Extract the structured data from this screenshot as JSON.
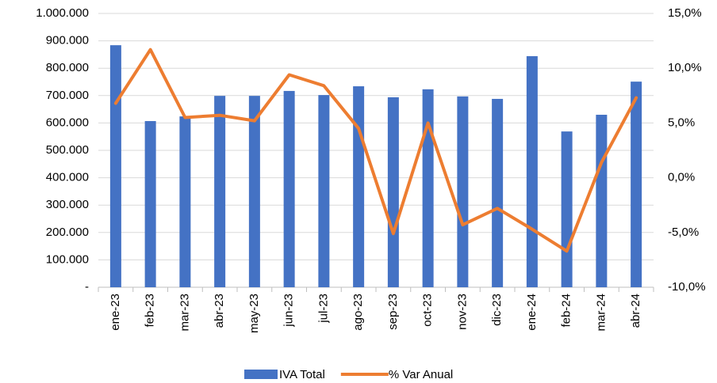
{
  "chart_data": {
    "type": "bar-line",
    "categories": [
      "ene-23",
      "feb-23",
      "mar-23",
      "abr-23",
      "may-23",
      "jun-23",
      "jul-23",
      "ago-23",
      "sep-23",
      "oct-23",
      "nov-23",
      "dic-23",
      "ene-24",
      "feb-24",
      "mar-24",
      "abr-24"
    ],
    "series": [
      {
        "name": "IVA Total",
        "type": "bar",
        "color": "#4472c4",
        "values": [
          884000,
          607000,
          624000,
          699000,
          699000,
          717000,
          702000,
          734000,
          694000,
          723000,
          697000,
          688000,
          844000,
          569000,
          630000,
          751000
        ]
      },
      {
        "name": "% Var Anual",
        "type": "line",
        "axis": "y2",
        "color": "#ed7d31",
        "values": [
          6.8,
          11.7,
          5.5,
          5.7,
          5.2,
          9.4,
          8.4,
          4.5,
          -5.1,
          5.0,
          -4.3,
          -2.8,
          -4.7,
          -6.7,
          1.4,
          7.3
        ]
      }
    ],
    "ylim": [
      0,
      1000000
    ],
    "yticks": [
      {
        "value": 0,
        "label": "-"
      },
      {
        "value": 100000,
        "label": "100.000"
      },
      {
        "value": 200000,
        "label": "200.000"
      },
      {
        "value": 300000,
        "label": "300.000"
      },
      {
        "value": 400000,
        "label": "400.000"
      },
      {
        "value": 500000,
        "label": "500.000"
      },
      {
        "value": 600000,
        "label": "600.000"
      },
      {
        "value": 700000,
        "label": "700.000"
      },
      {
        "value": 800000,
        "label": "800.000"
      },
      {
        "value": 900000,
        "label": "900.000"
      },
      {
        "value": 1000000,
        "label": "1.000.000"
      }
    ],
    "y2lim": [
      -10,
      15
    ],
    "y2ticks": [
      {
        "value": -10,
        "label": "-10,0%"
      },
      {
        "value": -5,
        "label": "-5,0%"
      },
      {
        "value": 0,
        "label": "0,0%"
      },
      {
        "value": 5,
        "label": "5,0%"
      },
      {
        "value": 10,
        "label": "10,0%"
      },
      {
        "value": 15,
        "label": "15,0%"
      }
    ],
    "grid": true,
    "legend": "bottom"
  }
}
